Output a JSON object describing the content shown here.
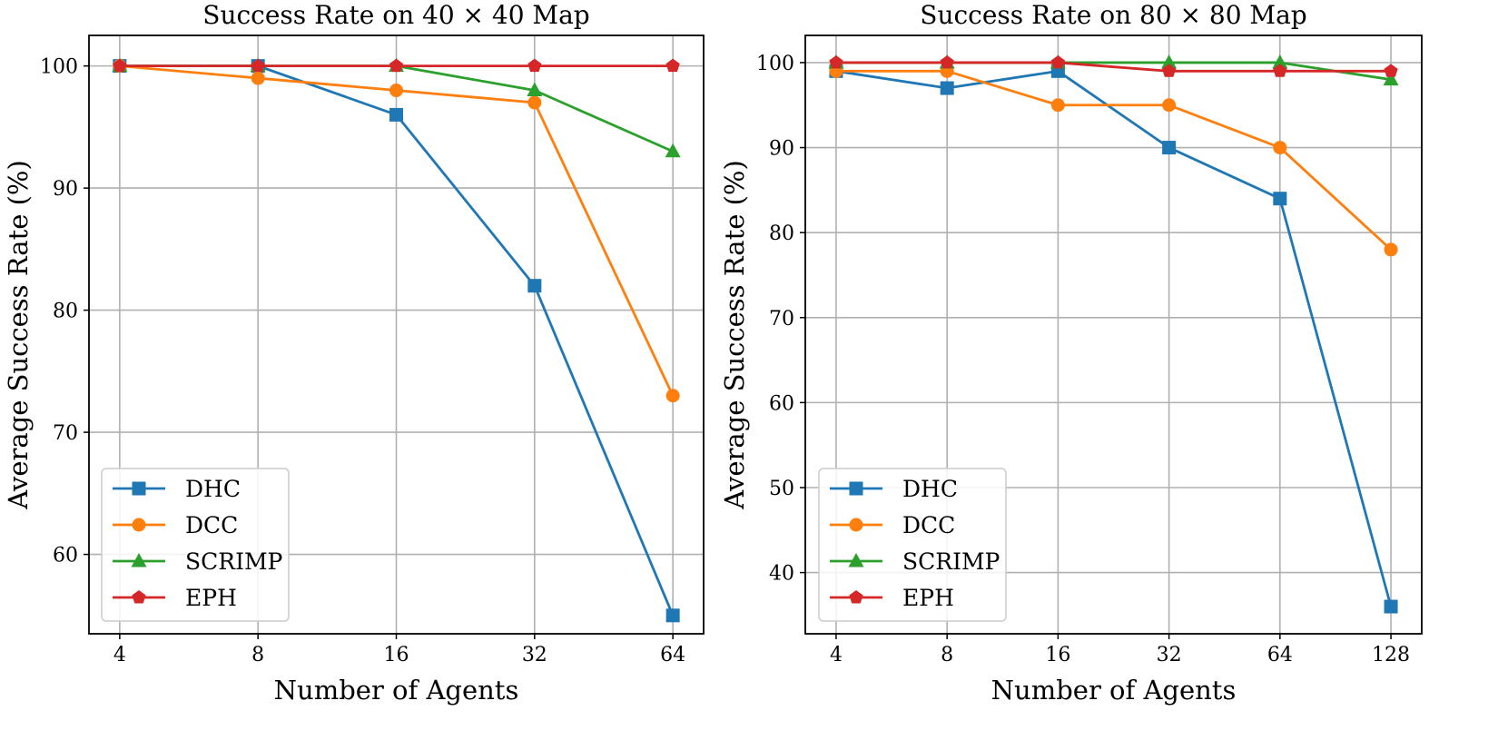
{
  "chart_data": [
    {
      "type": "line",
      "title": "Success Rate on 40 × 40 Map",
      "xlabel": "Number of Agents",
      "ylabel": "Average Success Rate (%)",
      "x": [
        4,
        8,
        16,
        32,
        64
      ],
      "x_tick_labels": [
        "4",
        "8",
        "16",
        "32",
        "64"
      ],
      "x_scale": "log2",
      "ylim": [
        53.5,
        102.5
      ],
      "y_ticks": [
        60,
        70,
        80,
        90,
        100
      ],
      "grid": true,
      "legend_position": "lower-left",
      "series": [
        {
          "name": "DHC",
          "marker": "square",
          "color": "#1f77b4",
          "values": [
            100,
            100,
            96,
            82,
            55
          ]
        },
        {
          "name": "DCC",
          "marker": "circle",
          "color": "#ff7f0e",
          "values": [
            100,
            99,
            98,
            97,
            73
          ]
        },
        {
          "name": "SCRIMP",
          "marker": "triangle",
          "color": "#2ca02c",
          "values": [
            100,
            100,
            100,
            98,
            93
          ]
        },
        {
          "name": "EPH",
          "marker": "pentagon",
          "color": "#d62728",
          "values": [
            100,
            100,
            100,
            100,
            100
          ]
        }
      ]
    },
    {
      "type": "line",
      "title": "Success Rate on 80 × 80 Map",
      "xlabel": "Number of Agents",
      "ylabel": "Average Success Rate (%)",
      "x": [
        4,
        8,
        16,
        32,
        64,
        128
      ],
      "x_tick_labels": [
        "4",
        "8",
        "16",
        "32",
        "64",
        "128"
      ],
      "x_scale": "log2",
      "ylim": [
        32.8,
        103.2
      ],
      "y_ticks": [
        40,
        50,
        60,
        70,
        80,
        90,
        100
      ],
      "grid": true,
      "legend_position": "lower-left",
      "series": [
        {
          "name": "DHC",
          "marker": "square",
          "color": "#1f77b4",
          "values": [
            99,
            97,
            99,
            90,
            84,
            36
          ]
        },
        {
          "name": "DCC",
          "marker": "circle",
          "color": "#ff7f0e",
          "values": [
            99,
            99,
            95,
            95,
            90,
            78
          ]
        },
        {
          "name": "SCRIMP",
          "marker": "triangle",
          "color": "#2ca02c",
          "values": [
            100,
            100,
            100,
            100,
            100,
            98
          ]
        },
        {
          "name": "EPH",
          "marker": "pentagon",
          "color": "#d62728",
          "values": [
            100,
            100,
            100,
            99,
            99,
            99
          ]
        }
      ]
    }
  ]
}
